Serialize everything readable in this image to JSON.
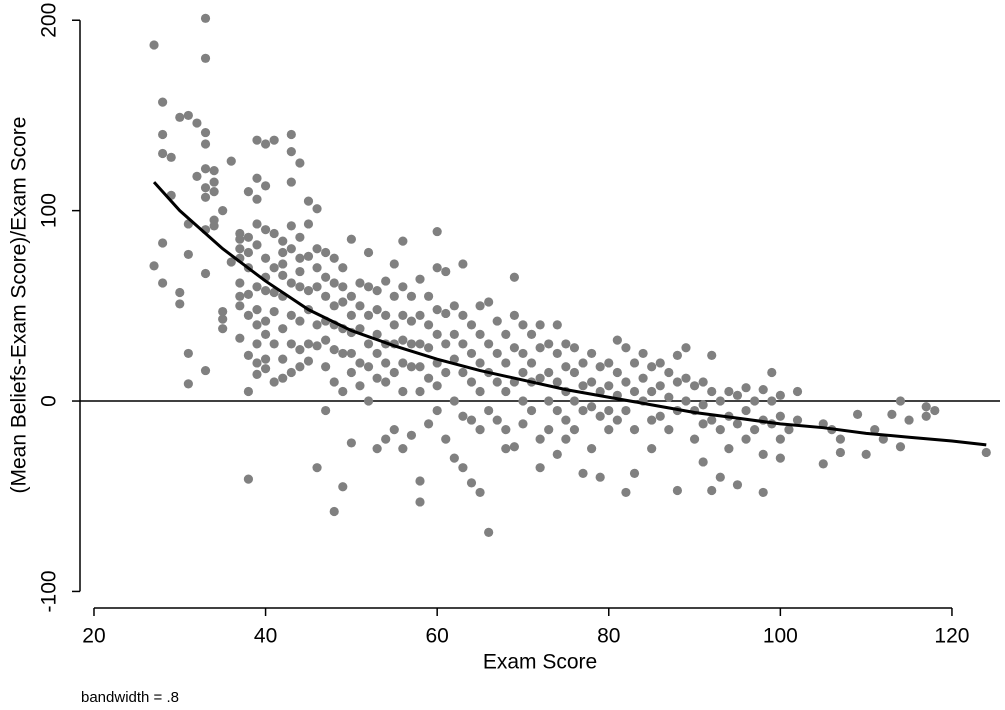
{
  "chart_data": {
    "type": "scatter",
    "xlabel": "Exam Score",
    "ylabel": "(Mean Beliefs-Exam Score)/Exam Score",
    "note": "bandwidth = .8",
    "xlim": [
      18.37,
      125.6
    ],
    "ylim": [
      -108.7,
      208
    ],
    "xticks": [
      20,
      40,
      60,
      80,
      100,
      120
    ],
    "yticks": [
      -100,
      0,
      100,
      200
    ],
    "hline": 0,
    "series": [
      {
        "type": "scatter",
        "color": "#808080",
        "x": [
          27,
          27,
          28,
          28,
          28,
          28,
          28,
          29,
          29,
          30,
          30,
          30,
          31,
          31,
          31,
          31,
          31,
          32,
          32,
          33,
          33,
          33,
          33,
          33,
          33,
          33,
          33,
          33,
          33,
          34,
          34,
          34,
          34,
          34,
          35,
          35,
          35,
          35,
          36,
          36,
          37,
          37,
          37,
          37,
          37,
          37,
          37,
          37,
          38,
          38,
          38,
          38,
          38,
          38,
          38,
          38,
          38,
          39,
          39,
          39,
          39,
          39,
          39,
          39,
          39,
          39,
          39,
          39,
          40,
          40,
          40,
          40,
          40,
          40,
          40,
          40,
          40,
          40,
          41,
          41,
          41,
          41,
          41,
          41,
          41,
          42,
          42,
          42,
          42,
          42,
          42,
          42,
          42,
          43,
          43,
          43,
          43,
          43,
          43,
          43,
          43,
          43,
          44,
          44,
          44,
          44,
          44,
          44,
          44,
          44,
          45,
          45,
          45,
          45,
          45,
          45,
          45,
          46,
          46,
          46,
          46,
          46,
          46,
          46,
          47,
          47,
          47,
          47,
          47,
          47,
          47,
          48,
          48,
          48,
          48,
          48,
          48,
          48,
          49,
          49,
          49,
          49,
          49,
          49,
          49,
          50,
          50,
          50,
          50,
          50,
          50,
          50,
          51,
          51,
          51,
          51,
          51,
          52,
          52,
          52,
          52,
          52,
          52,
          53,
          53,
          53,
          53,
          53,
          53,
          54,
          54,
          54,
          54,
          54,
          54,
          55,
          55,
          55,
          55,
          55,
          55,
          56,
          56,
          56,
          56,
          56,
          56,
          56,
          57,
          57,
          57,
          57,
          57,
          58,
          58,
          58,
          58,
          58,
          58,
          58,
          59,
          59,
          59,
          59,
          59,
          60,
          60,
          60,
          60,
          60,
          60,
          60,
          61,
          61,
          61,
          61,
          61,
          62,
          62,
          62,
          62,
          62,
          63,
          63,
          63,
          63,
          63,
          63,
          64,
          64,
          64,
          64,
          64,
          65,
          65,
          65,
          65,
          65,
          65,
          66,
          66,
          66,
          66,
          66,
          67,
          67,
          67,
          67,
          68,
          68,
          68,
          68,
          68,
          69,
          69,
          69,
          69,
          69,
          70,
          70,
          70,
          70,
          70,
          71,
          71,
          71,
          71,
          72,
          72,
          72,
          72,
          72,
          73,
          73,
          73,
          73,
          74,
          74,
          74,
          74,
          74,
          75,
          75,
          75,
          75,
          75,
          76,
          76,
          76,
          76,
          77,
          77,
          77,
          77,
          78,
          78,
          78,
          78,
          79,
          79,
          79,
          79,
          80,
          80,
          80,
          80,
          81,
          81,
          81,
          81,
          82,
          82,
          82,
          82,
          83,
          83,
          83,
          83,
          84,
          84,
          84,
          85,
          85,
          85,
          85,
          86,
          86,
          86,
          87,
          87,
          87,
          88,
          88,
          88,
          88,
          89,
          89,
          89,
          90,
          90,
          90,
          91,
          91,
          91,
          91,
          92,
          92,
          92,
          92,
          93,
          93,
          93,
          94,
          94,
          94,
          95,
          95,
          95,
          96,
          96,
          96,
          97,
          97,
          98,
          98,
          98,
          98,
          99,
          99,
          99,
          100,
          100,
          100,
          100,
          101,
          102,
          102,
          105,
          105,
          106,
          107,
          107,
          109,
          110,
          111,
          112,
          113,
          114,
          114,
          115,
          117,
          117,
          118,
          124
        ],
        "values": [
          187,
          71,
          157,
          140,
          130,
          83,
          62,
          108,
          128,
          149,
          57,
          51,
          150,
          93,
          77,
          25,
          9,
          146,
          118,
          201,
          180,
          141,
          135,
          122,
          112,
          107,
          90,
          67,
          16,
          121,
          115,
          110,
          95,
          92,
          100,
          47,
          43,
          38,
          126,
          73,
          88,
          85,
          80,
          75,
          62,
          55,
          50,
          33,
          110,
          86,
          78,
          70,
          56,
          45,
          24,
          5,
          -41,
          137,
          117,
          106,
          93,
          82,
          60,
          48,
          40,
          30,
          20,
          14,
          135,
          113,
          90,
          75,
          65,
          58,
          42,
          35,
          22,
          17,
          137,
          88,
          70,
          57,
          47,
          30,
          10,
          84,
          78,
          72,
          66,
          55,
          38,
          22,
          12,
          140,
          131,
          115,
          92,
          80,
          62,
          45,
          30,
          15,
          125,
          86,
          75,
          68,
          60,
          42,
          27,
          18,
          105,
          93,
          76,
          58,
          48,
          30,
          21,
          101,
          80,
          70,
          60,
          40,
          29,
          -35,
          78,
          65,
          55,
          42,
          32,
          18,
          -5,
          75,
          62,
          50,
          40,
          27,
          10,
          -58,
          70,
          60,
          52,
          38,
          25,
          5,
          -45,
          85,
          55,
          45,
          36,
          25,
          15,
          -22,
          62,
          50,
          38,
          20,
          8,
          78,
          60,
          45,
          30,
          18,
          0,
          58,
          48,
          35,
          25,
          12,
          -25,
          63,
          45,
          30,
          20,
          10,
          -20,
          72,
          55,
          40,
          30,
          15,
          -15,
          84,
          60,
          45,
          32,
          20,
          5,
          -25,
          55,
          42,
          30,
          18,
          -18,
          64,
          45,
          30,
          18,
          5,
          -42,
          -53,
          55,
          40,
          28,
          12,
          -12,
          89,
          70,
          48,
          35,
          20,
          8,
          -5,
          68,
          46,
          30,
          15,
          -20,
          50,
          35,
          22,
          0,
          -30,
          72,
          45,
          30,
          15,
          -8,
          -35,
          40,
          25,
          10,
          -10,
          -43,
          50,
          35,
          20,
          5,
          -15,
          -48,
          52,
          30,
          15,
          -5,
          -69,
          42,
          25,
          10,
          -10,
          35,
          20,
          5,
          -15,
          -25,
          65,
          45,
          28,
          10,
          -24,
          40,
          25,
          15,
          0,
          -12,
          35,
          20,
          10,
          -5,
          40,
          28,
          12,
          -20,
          -35,
          30,
          15,
          0,
          -15,
          40,
          25,
          10,
          -5,
          -28,
          30,
          18,
          5,
          -10,
          -20,
          28,
          15,
          0,
          -15,
          20,
          8,
          -5,
          -38,
          25,
          10,
          -3,
          -25,
          18,
          5,
          -8,
          -40,
          20,
          8,
          -5,
          -15,
          32,
          15,
          3,
          -10,
          28,
          10,
          -5,
          -48,
          20,
          5,
          -15,
          -38,
          25,
          12,
          0,
          18,
          5,
          -10,
          -25,
          20,
          8,
          -8,
          15,
          2,
          -15,
          24,
          10,
          -5,
          -47,
          28,
          12,
          0,
          8,
          -5,
          -20,
          10,
          -2,
          -12,
          -32,
          24,
          5,
          -10,
          -47,
          0,
          -15,
          -40,
          5,
          -8,
          -25,
          3,
          -12,
          -44,
          7,
          -5,
          -20,
          0,
          -15,
          6,
          -10,
          -28,
          -48,
          15,
          0,
          -12,
          3,
          -8,
          -20,
          -30,
          -15,
          5,
          -10,
          -12,
          -33,
          -15,
          -20,
          -27,
          -7,
          -28,
          -15,
          -20,
          -7,
          0,
          -24,
          -10,
          -8,
          -3,
          -5,
          -27
        ]
      },
      {
        "type": "line",
        "color": "#000000",
        "x": [
          27,
          30,
          35,
          40,
          45,
          50,
          55,
          60,
          65,
          70,
          75,
          80,
          85,
          90,
          95,
          100,
          105,
          110,
          115,
          120,
          124
        ],
        "values": [
          115,
          100,
          80,
          63,
          48,
          37,
          29,
          22,
          16,
          11,
          6,
          2,
          -2,
          -6,
          -9,
          -12,
          -14,
          -17,
          -19,
          -21,
          -23
        ]
      }
    ]
  }
}
